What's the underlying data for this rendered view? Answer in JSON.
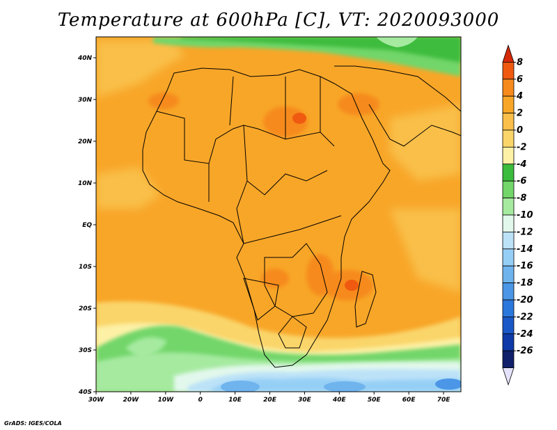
{
  "title": "Temperature at 600hPa [C], VT: 2020093000",
  "credit": "GrADS: IGES/COLA",
  "map": {
    "lon_range": [
      -30,
      75
    ],
    "lat_range": [
      -40,
      45
    ],
    "lon_ticks": [
      {
        "value": -30,
        "label": "30W"
      },
      {
        "value": -20,
        "label": "20W"
      },
      {
        "value": -10,
        "label": "10W"
      },
      {
        "value": 0,
        "label": "0"
      },
      {
        "value": 10,
        "label": "10E"
      },
      {
        "value": 20,
        "label": "20E"
      },
      {
        "value": 30,
        "label": "30E"
      },
      {
        "value": 40,
        "label": "40E"
      },
      {
        "value": 50,
        "label": "50E"
      },
      {
        "value": 60,
        "label": "60E"
      },
      {
        "value": 70,
        "label": "70E"
      }
    ],
    "lat_ticks": [
      {
        "value": 40,
        "label": "40N"
      },
      {
        "value": 30,
        "label": "30N"
      },
      {
        "value": 20,
        "label": "20N"
      },
      {
        "value": 10,
        "label": "10N"
      },
      {
        "value": 0,
        "label": "EQ"
      },
      {
        "value": -10,
        "label": "10S"
      },
      {
        "value": -20,
        "label": "20S"
      },
      {
        "value": -30,
        "label": "30S"
      },
      {
        "value": -40,
        "label": "40S"
      }
    ]
  },
  "colorbar": {
    "labels": [
      "8",
      "6",
      "4",
      "2",
      "0",
      "-2",
      "-4",
      "-6",
      "-8",
      "-10",
      "-12",
      "-14",
      "-16",
      "-18",
      "-20",
      "-22",
      "-24",
      "-26"
    ],
    "colors_top_to_bottom": [
      "#d42a0a",
      "#f05a10",
      "#f68a1c",
      "#f8a628",
      "#f9bf4a",
      "#fad56a",
      "#fdf1a6",
      "#3cbc3c",
      "#72d66a",
      "#a6eaa0",
      "#e2f8ec",
      "#bce2f8",
      "#96cff6",
      "#70b4ee",
      "#4b96e6",
      "#2b78dc",
      "#1a58c8",
      "#0e3aa8",
      "#10206a",
      "#e4e2fb"
    ]
  }
}
